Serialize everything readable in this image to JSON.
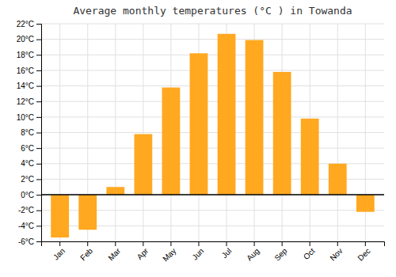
{
  "chart_data": {
    "type": "bar",
    "title": "Average monthly temperatures (°C ) in Towanda",
    "categories": [
      "Jan",
      "Feb",
      "Mar",
      "Apr",
      "May",
      "Jun",
      "Jul",
      "Aug",
      "Sep",
      "Oct",
      "Nov",
      "Dec"
    ],
    "values": [
      -5.5,
      -4.5,
      1.0,
      7.8,
      13.8,
      18.2,
      20.7,
      19.9,
      15.8,
      9.8,
      4.0,
      -2.2
    ],
    "color": "#FFA820",
    "ylim": [
      -6,
      22
    ],
    "yticks": [
      {
        "value": -6,
        "label": "-6°C"
      },
      {
        "value": -4,
        "label": "-4°C"
      },
      {
        "value": -2,
        "label": "-2°C"
      },
      {
        "value": 0,
        "label": "0°C"
      },
      {
        "value": 2,
        "label": "2°C"
      },
      {
        "value": 4,
        "label": "4°C"
      },
      {
        "value": 6,
        "label": "6°C"
      },
      {
        "value": 8,
        "label": "8°C"
      },
      {
        "value": 10,
        "label": "10°C"
      },
      {
        "value": 12,
        "label": "12°C"
      },
      {
        "value": 14,
        "label": "14°C"
      },
      {
        "value": 16,
        "label": "16°C"
      },
      {
        "value": 18,
        "label": "18°C"
      },
      {
        "value": 20,
        "label": "20°C"
      },
      {
        "value": 22,
        "label": "22°C"
      }
    ],
    "grid": true
  }
}
